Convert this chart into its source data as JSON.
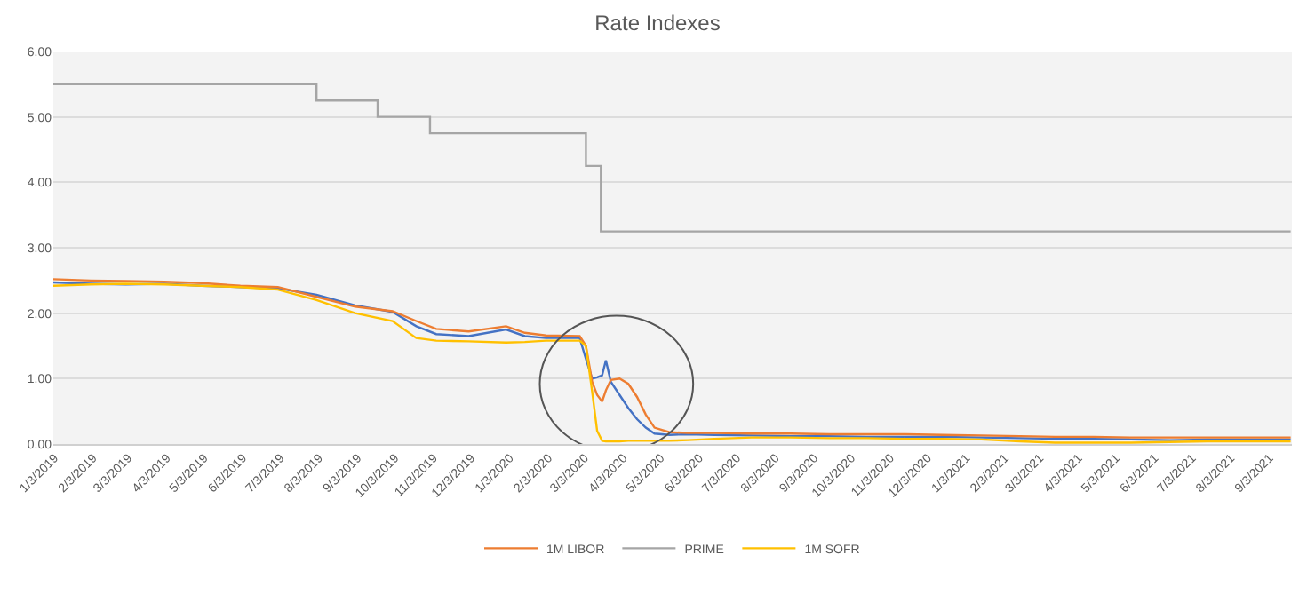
{
  "chart_data": {
    "type": "line",
    "title": "Rate Indexes",
    "x": [
      "2019-01-02",
      "2019-02-01",
      "2019-03-01",
      "2019-04-01",
      "2019-05-01",
      "2019-06-01",
      "2019-07-01",
      "2019-08-01",
      "2019-09-01",
      "2019-10-01",
      "2019-10-20",
      "2019-11-05",
      "2019-12-01",
      "2019-12-31",
      "2020-01-15",
      "2020-02-01",
      "2020-02-28",
      "2020-03-04",
      "2020-03-09",
      "2020-03-13",
      "2020-03-17",
      "2020-03-20",
      "2020-03-24",
      "2020-03-31",
      "2020-04-07",
      "2020-04-14",
      "2020-04-21",
      "2020-04-28",
      "2020-05-10",
      "2020-05-25",
      "2020-06-15",
      "2020-07-15",
      "2020-08-15",
      "2020-09-15",
      "2020-10-15",
      "2020-11-15",
      "2020-12-15",
      "2021-01-15",
      "2021-02-15",
      "2021-03-15",
      "2021-04-15",
      "2021-05-15",
      "2021-06-15",
      "2021-07-15",
      "2021-08-15",
      "2021-09-20"
    ],
    "series": [
      {
        "color": "#4472c4",
        "values": [
          2.47,
          2.45,
          2.44,
          2.45,
          2.42,
          2.4,
          2.38,
          2.28,
          2.12,
          2.02,
          1.8,
          1.68,
          1.65,
          1.75,
          1.65,
          1.62,
          1.62,
          1.3,
          1.0,
          1.02,
          1.05,
          1.28,
          0.95,
          0.75,
          0.55,
          0.38,
          0.25,
          0.16,
          0.14,
          0.15,
          0.14,
          0.13,
          0.12,
          0.12,
          0.11,
          0.11,
          0.11,
          0.1,
          0.09,
          0.08,
          0.08,
          0.07,
          0.06,
          0.07,
          0.07,
          0.07
        ]
      },
      {
        "name": "1M LIBOR",
        "color": "#ed7d31",
        "values": [
          2.52,
          2.5,
          2.49,
          2.48,
          2.46,
          2.42,
          2.4,
          2.25,
          2.1,
          2.03,
          1.88,
          1.76,
          1.72,
          1.8,
          1.7,
          1.66,
          1.65,
          1.5,
          0.95,
          0.75,
          0.65,
          0.82,
          0.98,
          1.0,
          0.92,
          0.72,
          0.45,
          0.25,
          0.18,
          0.17,
          0.17,
          0.16,
          0.16,
          0.15,
          0.15,
          0.15,
          0.14,
          0.13,
          0.12,
          0.11,
          0.11,
          0.1,
          0.1,
          0.1,
          0.1,
          0.1
        ]
      },
      {
        "name": "PRIME",
        "color": "#a5a5a5",
        "type": "step",
        "x": [
          "2019-01-02",
          "2019-08-01",
          "2019-09-19",
          "2019-10-31",
          "2020-03-04",
          "2020-03-16",
          "2021-09-20"
        ],
        "values": [
          5.5,
          5.25,
          5.0,
          4.75,
          4.25,
          3.25,
          3.25
        ]
      },
      {
        "name": "1M SOFR",
        "color": "#ffc000",
        "values": [
          2.42,
          2.44,
          2.45,
          2.44,
          2.42,
          2.4,
          2.36,
          2.2,
          2.0,
          1.88,
          1.62,
          1.58,
          1.57,
          1.55,
          1.56,
          1.58,
          1.58,
          1.5,
          0.8,
          0.2,
          0.05,
          0.04,
          0.04,
          0.04,
          0.05,
          0.05,
          0.05,
          0.05,
          0.05,
          0.06,
          0.08,
          0.1,
          0.1,
          0.09,
          0.09,
          0.08,
          0.08,
          0.07,
          0.04,
          0.02,
          0.02,
          0.02,
          0.03,
          0.04,
          0.04,
          0.04
        ]
      }
    ],
    "xlim": [
      "2019-01-02",
      "2021-09-21"
    ],
    "xticks": [
      {
        "value": "2019-01-03",
        "label": "1/3/2019"
      },
      {
        "value": "2019-02-03",
        "label": "2/3/2019"
      },
      {
        "value": "2019-03-03",
        "label": "3/3/2019"
      },
      {
        "value": "2019-04-03",
        "label": "4/3/2019"
      },
      {
        "value": "2019-05-03",
        "label": "5/3/2019"
      },
      {
        "value": "2019-06-03",
        "label": "6/3/2019"
      },
      {
        "value": "2019-07-03",
        "label": "7/3/2019"
      },
      {
        "value": "2019-08-03",
        "label": "8/3/2019"
      },
      {
        "value": "2019-09-03",
        "label": "9/3/2019"
      },
      {
        "value": "2019-10-03",
        "label": "10/3/2019"
      },
      {
        "value": "2019-11-03",
        "label": "11/3/2019"
      },
      {
        "value": "2019-12-03",
        "label": "12/3/2019"
      },
      {
        "value": "2020-01-03",
        "label": "1/3/2020"
      },
      {
        "value": "2020-02-03",
        "label": "2/3/2020"
      },
      {
        "value": "2020-03-03",
        "label": "3/3/2020"
      },
      {
        "value": "2020-04-03",
        "label": "4/3/2020"
      },
      {
        "value": "2020-05-03",
        "label": "5/3/2020"
      },
      {
        "value": "2020-06-03",
        "label": "6/3/2020"
      },
      {
        "value": "2020-07-03",
        "label": "7/3/2020"
      },
      {
        "value": "2020-08-03",
        "label": "8/3/2020"
      },
      {
        "value": "2020-09-03",
        "label": "9/3/2020"
      },
      {
        "value": "2020-10-03",
        "label": "10/3/2020"
      },
      {
        "value": "2020-11-03",
        "label": "11/3/2020"
      },
      {
        "value": "2020-12-03",
        "label": "12/3/2020"
      },
      {
        "value": "2021-01-03",
        "label": "1/3/2021"
      },
      {
        "value": "2021-02-03",
        "label": "2/3/2021"
      },
      {
        "value": "2021-03-03",
        "label": "3/3/2021"
      },
      {
        "value": "2021-04-03",
        "label": "4/3/2021"
      },
      {
        "value": "2021-05-03",
        "label": "5/3/2021"
      },
      {
        "value": "2021-06-03",
        "label": "6/3/2021"
      },
      {
        "value": "2021-07-03",
        "label": "7/3/2021"
      },
      {
        "value": "2021-08-03",
        "label": "8/3/2021"
      },
      {
        "value": "2021-09-03",
        "label": "9/3/2021"
      }
    ],
    "ylim": [
      0,
      6
    ],
    "yticks": [
      {
        "value": 0,
        "label": "0.00"
      },
      {
        "value": 1,
        "label": "1.00"
      },
      {
        "value": 2,
        "label": "2.00"
      },
      {
        "value": 3,
        "label": "3.00"
      },
      {
        "value": 4,
        "label": "4.00"
      },
      {
        "value": 5,
        "label": "5.00"
      },
      {
        "value": 6,
        "label": "6.00"
      }
    ],
    "grid": "y",
    "legend": "bottom",
    "line_style": "solid"
  }
}
